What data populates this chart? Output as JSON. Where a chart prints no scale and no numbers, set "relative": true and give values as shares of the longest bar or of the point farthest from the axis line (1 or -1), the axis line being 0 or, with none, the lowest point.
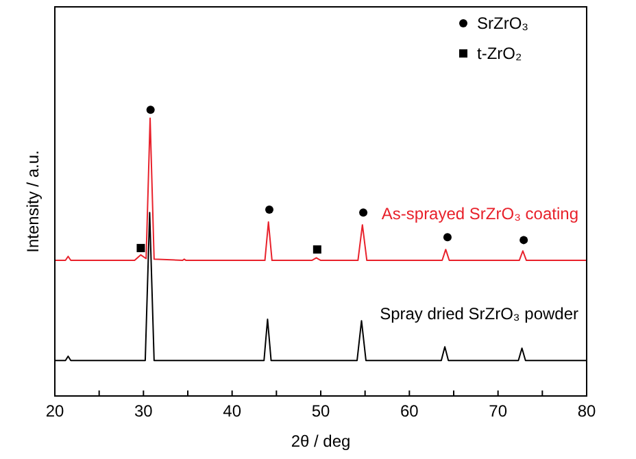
{
  "chart_data": {
    "type": "line",
    "relative": true,
    "xlabel": "2θ / deg",
    "ylabel": "Intensity / a.u.",
    "xlim": [
      20,
      80
    ],
    "xticks": [
      20,
      {
        "value": 25,
        "label": null
      },
      30,
      {
        "value": 35,
        "label": null
      },
      40,
      {
        "value": 45,
        "label": null
      },
      50,
      {
        "value": 55,
        "label": null
      },
      60,
      {
        "value": 65,
        "label": null
      },
      70,
      {
        "value": 75,
        "label": null
      },
      80
    ],
    "legend": "top right",
    "grid": false,
    "series": [
      {
        "name": "As-sprayed SrZrO₃ coating",
        "color": "#e8212b",
        "x": [
          20,
          21.2,
          21.5,
          21.8,
          29.0,
          29.7,
          30.3,
          30.75,
          31.2,
          34.4,
          34.6,
          34.8,
          43.7,
          44.1,
          44.5,
          49.0,
          49.5,
          50.0,
          54.2,
          54.7,
          55.2,
          63.7,
          64.1,
          64.5,
          72.4,
          72.8,
          73.2,
          80
        ],
        "values": [
          0.474,
          0.474,
          0.488,
          0.474,
          0.474,
          0.493,
          0.48,
          0.971,
          0.478,
          0.474,
          0.478,
          0.474,
          0.474,
          0.608,
          0.474,
          0.474,
          0.483,
          0.474,
          0.474,
          0.598,
          0.474,
          0.474,
          0.512,
          0.474,
          0.474,
          0.507,
          0.474,
          0.474
        ]
      },
      {
        "name": "Spray dried SrZrO₃ powder",
        "color": "#000000",
        "x": [
          20,
          21.2,
          21.5,
          21.8,
          30.2,
          30.7,
          31.2,
          43.6,
          44.0,
          44.4,
          54.1,
          54.6,
          55.1,
          63.6,
          64.0,
          64.4,
          72.3,
          72.7,
          73.1,
          80
        ],
        "values": [
          0.124,
          0.124,
          0.139,
          0.124,
          0.124,
          0.641,
          0.124,
          0.124,
          0.268,
          0.124,
          0.124,
          0.263,
          0.124,
          0.124,
          0.172,
          0.124,
          0.124,
          0.167,
          0.124,
          0.124
        ]
      },
      {
        "name": "SrZrO₃",
        "color": "#000000",
        "type": "scatter",
        "marker": "circle",
        "x": [
          30.8,
          44.2,
          54.8,
          64.3,
          72.9
        ],
        "values": [
          1.0,
          0.651,
          0.641,
          0.555,
          0.545
        ]
      },
      {
        "name": "t-ZrO₂",
        "color": "#000000",
        "type": "scatter",
        "marker": "square",
        "x": [
          29.7,
          49.6
        ],
        "values": [
          0.517,
          0.512
        ]
      }
    ]
  }
}
